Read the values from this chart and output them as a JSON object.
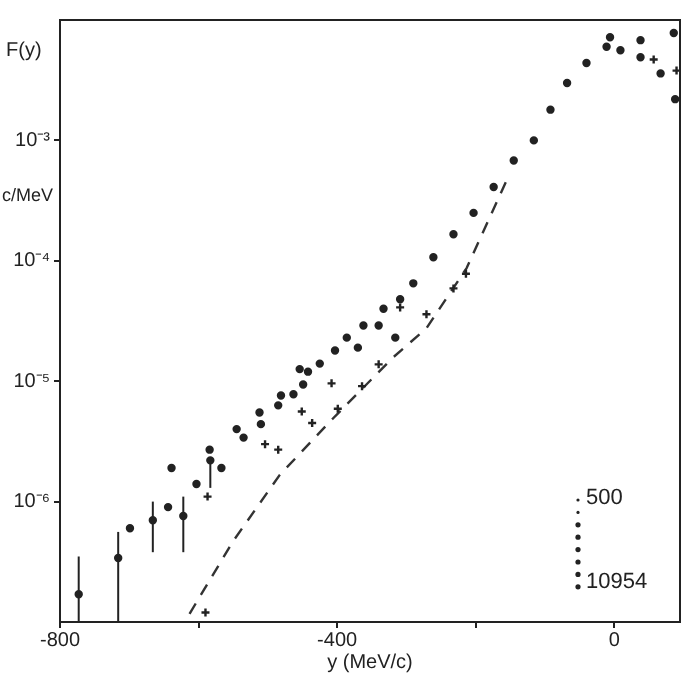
{
  "chart_data": {
    "type": "scatter",
    "xlabel": "y (MeV/c)",
    "ylabel": "F(y)",
    "annotations": [
      "c/MeV",
      "500",
      "10954"
    ],
    "log": "y",
    "grid": false,
    "legend": false,
    "xlim": [
      -800,
      95
    ],
    "xticks": [
      -800,
      {
        "value": -600,
        "label": null
      },
      -400,
      {
        "value": -200,
        "label": null
      },
      0
    ],
    "ylim": [
      1e-07,
      0.01
    ],
    "yticks": [
      {
        "value": 1e-06,
        "label": "10⁻⁶"
      },
      {
        "value": 1e-05,
        "label": "10⁻⁵"
      },
      {
        "value": 0.0001,
        "label": "10⁻⁴"
      },
      {
        "value": 0.001,
        "label": "10⁻³"
      }
    ],
    "series": [
      {
        "marker": "circle",
        "color": "#222222",
        "x": [
          -773,
          -716,
          -699,
          -666,
          -644,
          -639,
          -622,
          -603,
          -584,
          -583,
          -567,
          -545,
          -535,
          -512,
          -510,
          -485,
          -481,
          -463,
          -454,
          -449,
          -442,
          -425,
          -403,
          -386,
          -370,
          -362,
          -340,
          -333,
          -316,
          -309,
          -290,
          -261,
          -232,
          -203,
          -174,
          -145,
          -116,
          -92,
          -68,
          -40,
          -11,
          -6,
          9,
          38,
          38,
          67,
          86,
          88
        ],
        "values": [
          1.7e-07,
          3.4e-07,
          6e-07,
          7e-07,
          9e-07,
          1.9e-06,
          7.6e-07,
          1.4e-06,
          2.7e-06,
          2.2e-06,
          1.9e-06,
          4e-06,
          3.4e-06,
          5.5e-06,
          4.4e-06,
          6.3e-06,
          7.6e-06,
          7.8e-06,
          1.26e-05,
          9.4e-06,
          1.2e-05,
          1.4e-05,
          1.8e-05,
          2.3e-05,
          1.9e-05,
          2.9e-05,
          2.9e-05,
          4e-05,
          2.3e-05,
          4.8e-05,
          6.5e-05,
          0.000107,
          0.000166,
          0.00025,
          0.00041,
          0.00068,
          0.001,
          0.0018,
          0.003,
          0.0044,
          0.006,
          0.0072,
          0.0056,
          0.0049,
          0.0068,
          0.0036,
          0.0078,
          0.0022
        ],
        "errors": [
          [
            1e-07,
            3.5e-07
          ],
          [
            1e-07,
            5.6e-07
          ],
          null,
          [
            3.8e-07,
            1e-06
          ],
          null,
          null,
          [
            3.8e-07,
            1.1e-06
          ],
          null,
          null,
          [
            1.3e-06,
            2.2e-06
          ],
          null,
          null,
          null,
          null,
          null,
          null,
          null,
          null,
          null,
          null,
          null,
          null,
          null,
          null,
          null,
          null,
          null,
          null,
          null,
          null,
          null,
          null,
          null,
          null,
          null,
          null,
          null,
          null,
          null,
          null,
          null,
          null,
          null,
          null,
          null,
          null,
          null,
          null
        ]
      },
      {
        "marker": "cross",
        "color": "#222222",
        "x": [
          -590,
          -587,
          -504,
          -485,
          -451,
          -436,
          -408,
          -399,
          -364,
          -340,
          -309,
          -271,
          -232,
          -214,
          57,
          90
        ],
        "values": [
          1.2e-07,
          1.1e-06,
          3e-06,
          2.7e-06,
          5.6e-06,
          4.5e-06,
          9.6e-06,
          5.9e-06,
          9.1e-06,
          1.38e-05,
          4.1e-05,
          3.6e-05,
          5.9e-05,
          7.8e-05,
          0.0047,
          0.0038
        ]
      },
      {
        "type": "line",
        "marker": "none",
        "line_style": "dashed",
        "color": "#333333",
        "x": [
          -613,
          -550,
          -483,
          -406,
          -319,
          -271,
          -213,
          -155
        ],
        "values": [
          1.17e-07,
          4.7e-07,
          1.66e-06,
          4.9e-06,
          1.58e-05,
          2.75e-05,
          8.7e-05,
          0.00047
        ]
      }
    ]
  }
}
